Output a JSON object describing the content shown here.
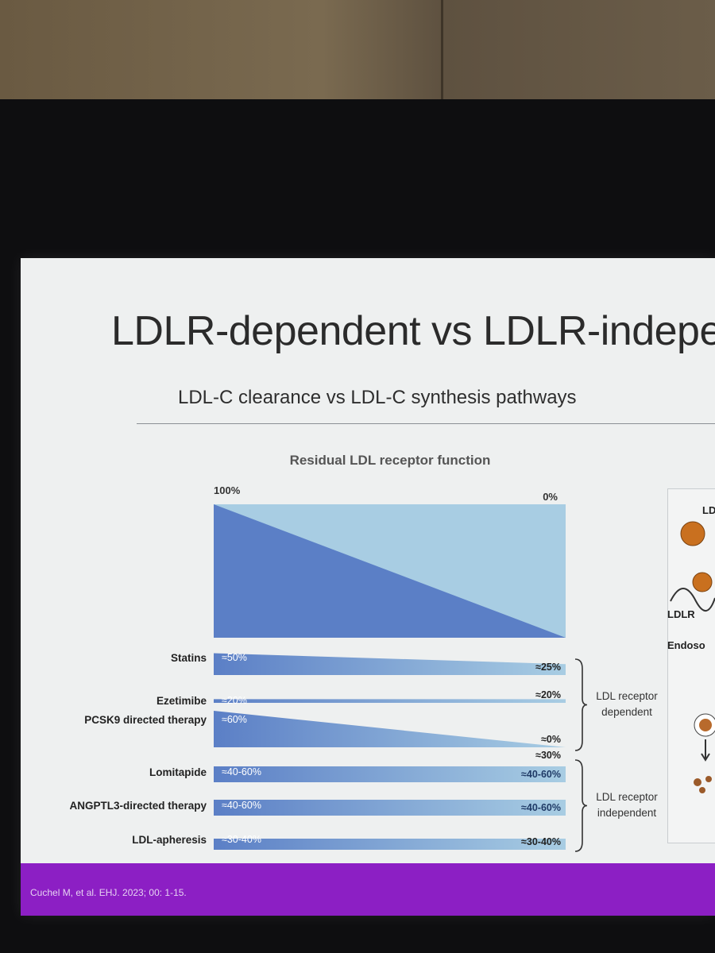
{
  "slide": {
    "title": "LDLR-dependent vs LDLR-indeper",
    "subtitle": "LDL-C clearance vs LDL-C synthesis pathways",
    "footer": "Cuchel M, et al. EHJ. 2023; 00: 1-15."
  },
  "right_panel": {
    "label_ld": "LD",
    "label_ldlr": "LDLR",
    "label_endoso": "Endoso"
  },
  "colors": {
    "dark_blue": "#5b7fc6",
    "light_blue": "#a8cde3",
    "bar_text": "#ffffff",
    "footer_purple": "#8c1fc4"
  },
  "chart_data": {
    "type": "bar",
    "title": "Residual LDL receptor function",
    "axis": {
      "left_label": "100%",
      "right_label": "0%"
    },
    "therapies": [
      {
        "name": "Statins",
        "left": "≈50%",
        "right": "≈25%",
        "left_value": 50,
        "right_value": 25,
        "group": "dependent"
      },
      {
        "name": "Ezetimibe",
        "left": "≈20%",
        "right": "≈20%",
        "left_value": 20,
        "right_value": 20,
        "group": "dependent"
      },
      {
        "name": "PCSK9 directed therapy",
        "left": "≈60%",
        "right": "≈0%",
        "right_extra": "≈30%",
        "left_value": 60,
        "right_value": 0,
        "group": "dependent"
      },
      {
        "name": "Lomitapide",
        "left": "≈40-60%",
        "right": "≈40-60%",
        "left_value": 50,
        "right_value": 50,
        "group": "independent"
      },
      {
        "name": "ANGPTL3-directed therapy",
        "left": "≈40-60%",
        "right": "≈40-60%",
        "left_value": 50,
        "right_value": 50,
        "group": "independent"
      },
      {
        "name": "LDL-apheresis",
        "left": "≈30-40%",
        "right": "≈30-40%",
        "left_value": 35,
        "right_value": 35,
        "group": "independent"
      }
    ],
    "groups": [
      {
        "id": "dependent",
        "line1": "LDL receptor",
        "line2": "dependent"
      },
      {
        "id": "independent",
        "line1": "LDL receptor",
        "line2": "independent"
      }
    ]
  }
}
